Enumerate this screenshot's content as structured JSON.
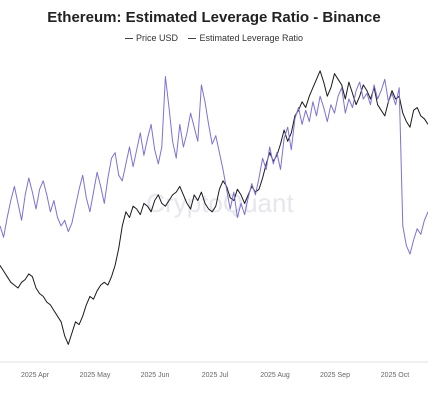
{
  "chart_data": {
    "type": "line",
    "title": "Ethereum: Estimated Leverage Ratio - Binance",
    "watermark": "CryptoQuant",
    "legend": [
      "Price USD",
      "Estimated Leverage Ratio"
    ],
    "legend_placement": "top-center",
    "grid": false,
    "x_tick_labels": [
      "2025 Apr",
      "2025 May",
      "2025 Jun",
      "2025 Jul",
      "2025 Aug",
      "2025 Sep",
      "2025 Oct"
    ],
    "colors": {
      "price": "#1a1a1a",
      "leverage": "#7b72d6"
    },
    "series": [
      {
        "name": "Price USD",
        "scale": "relative",
        "values": [
          0.3,
          0.28,
          0.26,
          0.24,
          0.23,
          0.22,
          0.24,
          0.25,
          0.27,
          0.26,
          0.22,
          0.2,
          0.19,
          0.17,
          0.16,
          0.14,
          0.12,
          0.1,
          0.05,
          0.02,
          0.06,
          0.1,
          0.09,
          0.12,
          0.16,
          0.19,
          0.18,
          0.21,
          0.23,
          0.24,
          0.23,
          0.26,
          0.3,
          0.36,
          0.44,
          0.49,
          0.47,
          0.51,
          0.5,
          0.48,
          0.52,
          0.51,
          0.49,
          0.53,
          0.55,
          0.52,
          0.51,
          0.53,
          0.55,
          0.56,
          0.58,
          0.55,
          0.52,
          0.5,
          0.55,
          0.53,
          0.56,
          0.52,
          0.5,
          0.49,
          0.51,
          0.57,
          0.6,
          0.58,
          0.54,
          0.53,
          0.57,
          0.55,
          0.52,
          0.55,
          0.58,
          0.56,
          0.57,
          0.61,
          0.66,
          0.7,
          0.67,
          0.69,
          0.73,
          0.78,
          0.74,
          0.77,
          0.83,
          0.85,
          0.88,
          0.86,
          0.9,
          0.93,
          0.96,
          0.99,
          0.95,
          0.9,
          0.93,
          0.98,
          0.96,
          0.94,
          0.89,
          0.95,
          0.91,
          0.87,
          0.9,
          0.94,
          0.92,
          0.89,
          0.93,
          0.87,
          0.85,
          0.83,
          0.88,
          0.92,
          0.89,
          0.9,
          0.84,
          0.81,
          0.79,
          0.85,
          0.86,
          0.83,
          0.82,
          0.8
        ]
      },
      {
        "name": "Estimated Leverage Ratio",
        "scale": "relative",
        "values": [
          0.44,
          0.4,
          0.47,
          0.53,
          0.58,
          0.52,
          0.46,
          0.55,
          0.61,
          0.56,
          0.5,
          0.57,
          0.6,
          0.55,
          0.49,
          0.53,
          0.47,
          0.44,
          0.46,
          0.42,
          0.45,
          0.51,
          0.57,
          0.62,
          0.54,
          0.49,
          0.56,
          0.63,
          0.58,
          0.52,
          0.61,
          0.68,
          0.7,
          0.62,
          0.6,
          0.66,
          0.72,
          0.65,
          0.71,
          0.77,
          0.69,
          0.75,
          0.8,
          0.71,
          0.66,
          0.72,
          0.97,
          0.86,
          0.74,
          0.68,
          0.8,
          0.72,
          0.77,
          0.84,
          0.79,
          0.74,
          0.94,
          0.88,
          0.8,
          0.73,
          0.76,
          0.7,
          0.64,
          0.57,
          0.5,
          0.56,
          0.47,
          0.52,
          0.48,
          0.54,
          0.59,
          0.55,
          0.61,
          0.68,
          0.64,
          0.72,
          0.66,
          0.7,
          0.64,
          0.75,
          0.79,
          0.71,
          0.82,
          0.86,
          0.8,
          0.85,
          0.81,
          0.88,
          0.83,
          0.9,
          0.86,
          0.81,
          0.87,
          0.84,
          0.9,
          0.93,
          0.84,
          0.89,
          0.86,
          0.92,
          0.95,
          0.89,
          0.91,
          0.87,
          0.94,
          0.89,
          0.92,
          0.96,
          0.88,
          0.91,
          0.87,
          0.93,
          0.44,
          0.37,
          0.34,
          0.39,
          0.43,
          0.41,
          0.46,
          0.49
        ]
      }
    ]
  }
}
